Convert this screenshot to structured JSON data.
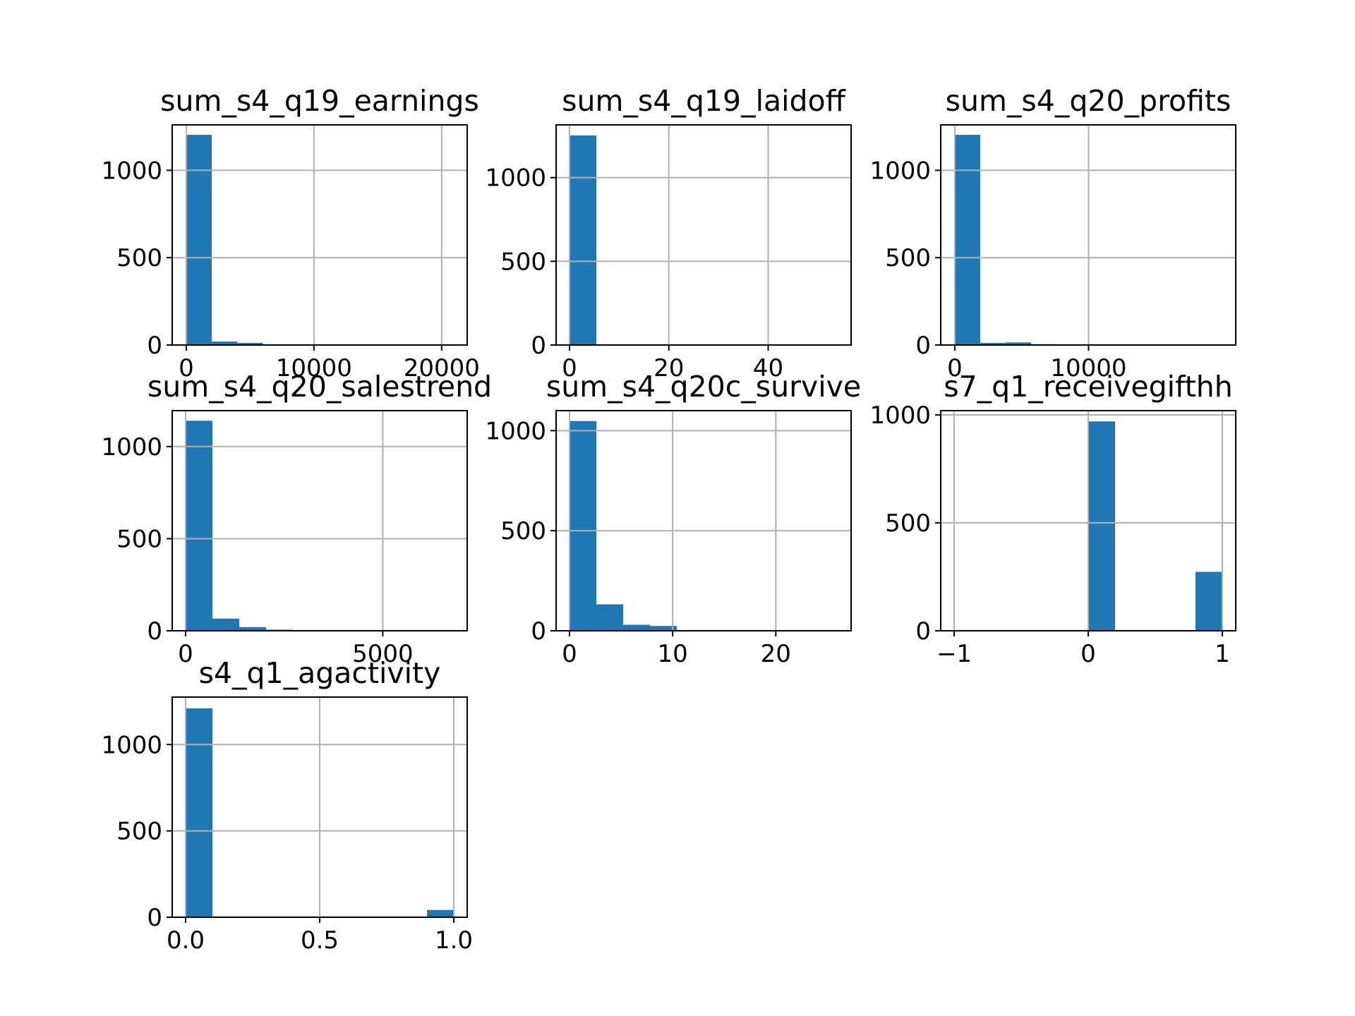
{
  "colors": {
    "bar": "#1f77b4",
    "grid": "#b0b0b0",
    "axis": "#000000",
    "background": "#ffffff"
  },
  "chart_data": [
    {
      "type": "bar",
      "title": "sum_s4_q19_earnings",
      "grid": true,
      "xlim": [
        -1100,
        22000
      ],
      "ylim": [
        0,
        1260
      ],
      "xticks": [
        {
          "value": 0,
          "label": "0"
        },
        {
          "value": 10000,
          "label": "10000"
        },
        {
          "value": 20000,
          "label": "20000"
        }
      ],
      "yticks": [
        {
          "value": 0,
          "label": "0"
        },
        {
          "value": 500,
          "label": "500"
        },
        {
          "value": 1000,
          "label": "1000"
        }
      ],
      "bin_edges": [
        0,
        2000,
        4000,
        6000,
        8000,
        10000,
        12000,
        14000,
        16000,
        18000,
        20000
      ],
      "values": [
        1203,
        20,
        12,
        4,
        2,
        1,
        1,
        0,
        0,
        1
      ]
    },
    {
      "type": "bar",
      "title": "sum_s4_q19_laidoff",
      "grid": true,
      "xlim": [
        -2.7,
        56.7
      ],
      "ylim": [
        0,
        1315
      ],
      "xticks": [
        {
          "value": 0,
          "label": "0"
        },
        {
          "value": 20,
          "label": "20"
        },
        {
          "value": 40,
          "label": "40"
        }
      ],
      "yticks": [
        {
          "value": 0,
          "label": "0"
        },
        {
          "value": 500,
          "label": "500"
        },
        {
          "value": 1000,
          "label": "1000"
        }
      ],
      "bin_edges": [
        0,
        5.4,
        10.8,
        16.2,
        21.6,
        27,
        32.4,
        37.8,
        43.2,
        48.6,
        54
      ],
      "values": [
        1252,
        3,
        1,
        0,
        0,
        0,
        0,
        0,
        0,
        1
      ]
    },
    {
      "type": "bar",
      "title": "sum_s4_q20_profits",
      "grid": true,
      "xlim": [
        -1050,
        21000
      ],
      "ylim": [
        0,
        1260
      ],
      "xticks": [
        {
          "value": 0,
          "label": "0"
        },
        {
          "value": 10000,
          "label": "10000"
        }
      ],
      "yticks": [
        {
          "value": 0,
          "label": "0"
        },
        {
          "value": 500,
          "label": "500"
        },
        {
          "value": 1000,
          "label": "1000"
        }
      ],
      "bin_edges": [
        0,
        1900,
        3800,
        5700,
        7600,
        9500,
        11400,
        13300,
        15200,
        17100,
        19000
      ],
      "values": [
        1203,
        12,
        15,
        5,
        2,
        1,
        1,
        0,
        0,
        1
      ]
    },
    {
      "type": "bar",
      "title": "sum_s4_q20_salestrend",
      "grid": true,
      "xlim": [
        -340,
        7140
      ],
      "ylim": [
        0,
        1195
      ],
      "xticks": [
        {
          "value": 0,
          "label": "0"
        },
        {
          "value": 5000,
          "label": "5000"
        }
      ],
      "yticks": [
        {
          "value": 0,
          "label": "0"
        },
        {
          "value": 500,
          "label": "500"
        },
        {
          "value": 1000,
          "label": "1000"
        }
      ],
      "bin_edges": [
        0,
        680,
        1360,
        2040,
        2720,
        3400,
        4080,
        4760,
        5440,
        6120,
        6800
      ],
      "values": [
        1140,
        66,
        20,
        6,
        2,
        1,
        1,
        0,
        0,
        1
      ]
    },
    {
      "type": "bar",
      "title": "sum_s4_q20c_survive",
      "grid": true,
      "xlim": [
        -1.3,
        27.3
      ],
      "ylim": [
        0,
        1100
      ],
      "xticks": [
        {
          "value": 0,
          "label": "0"
        },
        {
          "value": 10,
          "label": "10"
        },
        {
          "value": 20,
          "label": "20"
        }
      ],
      "yticks": [
        {
          "value": 0,
          "label": "0"
        },
        {
          "value": 500,
          "label": "500"
        },
        {
          "value": 1000,
          "label": "1000"
        }
      ],
      "bin_edges": [
        0,
        2.6,
        5.2,
        7.8,
        10.4,
        13,
        15.6,
        18.2,
        20.8,
        23.4,
        26
      ],
      "values": [
        1048,
        132,
        30,
        24,
        3,
        1,
        1,
        0,
        1,
        1
      ]
    },
    {
      "type": "bar",
      "title": "s7_q1_receivegifthh",
      "grid": true,
      "xlim": [
        -1.1,
        1.1
      ],
      "ylim": [
        0,
        1020
      ],
      "xticks": [
        {
          "value": -1,
          "label": "−1"
        },
        {
          "value": 0,
          "label": "0"
        },
        {
          "value": 1,
          "label": "1"
        }
      ],
      "yticks": [
        {
          "value": 0,
          "label": "0"
        },
        {
          "value": 500,
          "label": "500"
        },
        {
          "value": 1000,
          "label": "1000"
        }
      ],
      "bin_edges": [
        0,
        0.2,
        0.8,
        1.0
      ],
      "values": [
        970,
        0,
        273
      ]
    },
    {
      "type": "bar",
      "title": "s4_q1_agactivity",
      "grid": true,
      "xlim": [
        -0.05,
        1.05
      ],
      "ylim": [
        0,
        1275
      ],
      "xticks": [
        {
          "value": 0,
          "label": "0.0"
        },
        {
          "value": 0.5,
          "label": "0.5"
        },
        {
          "value": 1,
          "label": "1.0"
        }
      ],
      "yticks": [
        {
          "value": 0,
          "label": "0"
        },
        {
          "value": 500,
          "label": "500"
        },
        {
          "value": 1000,
          "label": "1000"
        }
      ],
      "bin_edges": [
        0,
        0.1,
        0.2,
        0.3,
        0.4,
        0.5,
        0.6,
        0.7,
        0.8,
        0.9,
        1.0
      ],
      "values": [
        1210,
        0,
        0,
        0,
        0,
        0,
        0,
        0,
        0,
        42
      ]
    }
  ]
}
